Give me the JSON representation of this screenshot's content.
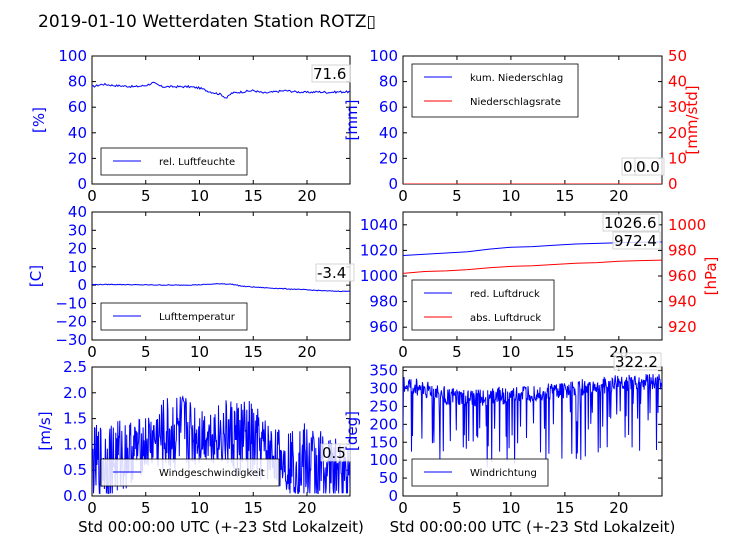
{
  "title": "2019-01-10 Wetterdaten Station ROTZ▯",
  "colors": {
    "primary": "#0000ff",
    "secondary": "#ff0000",
    "axis": "#000000"
  },
  "chart_data": [
    {
      "type": "line",
      "id": "humidity",
      "xlabel": "",
      "ylabel": "[%]",
      "xlim": [
        0,
        24
      ],
      "ylim": [
        0,
        100
      ],
      "xticks": [
        "0",
        "5",
        "10",
        "15",
        "20"
      ],
      "yticks": [
        "0",
        "20",
        "40",
        "60",
        "80",
        "100"
      ],
      "legend": {
        "placement": "lower-left"
      },
      "series": [
        {
          "name": "rel. Luftfeuchte",
          "color": "#0000ff",
          "x": [
            0,
            1,
            2,
            3,
            4,
            5,
            5.7,
            6.5,
            8,
            9,
            10,
            11,
            12,
            12.5,
            13,
            14,
            15,
            16,
            17,
            18,
            19,
            20,
            21,
            22,
            23,
            24
          ],
          "y": [
            76,
            78,
            77,
            76.5,
            76,
            77,
            79,
            76,
            76,
            76,
            75,
            72,
            70,
            67,
            71,
            72,
            73,
            71,
            72,
            73,
            72,
            71.5,
            72,
            71.6,
            72,
            72
          ]
        }
      ],
      "value_labels": [
        "71.6"
      ]
    },
    {
      "type": "line",
      "id": "precipitation",
      "xlabel": "",
      "ylabel": "[mm]",
      "ylabel2": "[mm/std]",
      "xlim": [
        0,
        24
      ],
      "ylim": [
        0,
        100
      ],
      "ylim2": [
        0,
        50
      ],
      "xticks": [
        "0",
        "5",
        "10",
        "15",
        "20"
      ],
      "yticks": [
        "0",
        "20",
        "40",
        "60",
        "80",
        "100"
      ],
      "yticks2": [
        "0",
        "10",
        "20",
        "30",
        "40",
        "50"
      ],
      "legend": {
        "placement": "top-left"
      },
      "series": [
        {
          "name": "kum. Niederschlag",
          "color": "#0000ff",
          "x": [
            0,
            24
          ],
          "y": [
            0,
            0
          ]
        },
        {
          "name": "Niederschlagsrate",
          "color": "#ff0000",
          "x": [
            0,
            24
          ],
          "y": [
            0,
            0
          ],
          "axis": "right"
        }
      ],
      "value_labels": [
        "0.0",
        "0.0"
      ]
    },
    {
      "type": "line",
      "id": "temperature",
      "xlabel": "",
      "ylabel": "[C]",
      "xlim": [
        0,
        24
      ],
      "ylim": [
        -30,
        40
      ],
      "xticks": [
        "0",
        "5",
        "10",
        "15",
        "20"
      ],
      "yticks": [
        "−30",
        "−20",
        "−10",
        "0",
        "10",
        "20",
        "30",
        "40"
      ],
      "legend": {
        "placement": "lower-left"
      },
      "series": [
        {
          "name": "Lufttemperatur",
          "color": "#0000ff",
          "x": [
            0,
            2,
            4,
            6,
            8,
            10,
            12,
            13,
            14,
            16,
            18,
            20,
            22,
            24
          ],
          "y": [
            0.3,
            0.4,
            0.2,
            0.1,
            0.0,
            0.2,
            0.8,
            0.5,
            -0.6,
            -1.4,
            -2.0,
            -2.6,
            -3.2,
            -3.4
          ]
        }
      ],
      "value_labels": [
        "-3.4"
      ]
    },
    {
      "type": "line",
      "id": "pressure",
      "xlabel": "",
      "ylabel": "",
      "ylabel2": "[hPa]",
      "xlim": [
        0,
        24
      ],
      "ylim": [
        950,
        1050
      ],
      "ylim2": [
        910,
        1010
      ],
      "xticks": [
        "0",
        "5",
        "10",
        "15",
        "20"
      ],
      "yticks": [
        "960",
        "980",
        "1000",
        "1020",
        "1040"
      ],
      "yticks2": [
        "920",
        "940",
        "960",
        "980",
        "1000"
      ],
      "legend": {
        "placement": "lower-left"
      },
      "series": [
        {
          "name": "red. Luftdruck",
          "color": "#0000ff",
          "x": [
            0,
            2,
            4,
            6,
            8,
            10,
            12,
            14,
            16,
            18,
            20,
            22,
            24
          ],
          "y": [
            1016,
            1017,
            1018,
            1019,
            1021,
            1022.5,
            1023,
            1024,
            1025,
            1025.5,
            1026,
            1026.4,
            1026.6
          ]
        },
        {
          "name": "abs. Luftdruck",
          "color": "#ff0000",
          "axis": "right",
          "x": [
            0,
            2,
            4,
            6,
            8,
            10,
            12,
            14,
            16,
            18,
            20,
            22,
            24
          ],
          "y": [
            962,
            963.5,
            964,
            965,
            966.5,
            967.5,
            968,
            969,
            970,
            970.5,
            971.5,
            972,
            972.4
          ]
        }
      ],
      "value_labels": [
        "1026.6",
        "972.4"
      ]
    },
    {
      "type": "line",
      "id": "wind-speed",
      "xlabel": "Std 00:00:00 UTC (+-23 Std Lokalzeit)",
      "ylabel": "[m/s]",
      "xlim": [
        0,
        24
      ],
      "ylim": [
        0,
        2.5
      ],
      "xticks": [
        "0",
        "5",
        "10",
        "15",
        "20"
      ],
      "yticks": [
        "0.0",
        "0.5",
        "1.0",
        "1.5",
        "2.0",
        "2.5"
      ],
      "legend": {
        "placement": "lower-left"
      },
      "series": [
        {
          "name": "Windgeschwindigkeit",
          "color": "#0000ff",
          "x": [
            0,
            2,
            4,
            6,
            8,
            10,
            12,
            14,
            16,
            18,
            20,
            22,
            24
          ],
          "y": [
            0.6,
            0.7,
            0.9,
            1.1,
            1.2,
            1.2,
            1.2,
            1.1,
            0.9,
            0.7,
            0.6,
            0.5,
            0.5
          ]
        }
      ],
      "value_labels": [
        "0.5"
      ]
    },
    {
      "type": "line",
      "id": "wind-direction",
      "xlabel": "Std 00:00:00 UTC (+-23 Std Lokalzeit)",
      "ylabel": "[deg]",
      "xlim": [
        0,
        24
      ],
      "ylim": [
        0,
        360
      ],
      "xticks": [
        "0",
        "5",
        "10",
        "15",
        "20"
      ],
      "yticks": [
        "0",
        "50",
        "100",
        "150",
        "200",
        "250",
        "300",
        "350"
      ],
      "legend": {
        "placement": "lower-left"
      },
      "series": [
        {
          "name": "Windrichtung",
          "color": "#0000ff",
          "x": [
            0,
            2,
            4,
            6,
            8,
            10,
            12,
            14,
            16,
            18,
            20,
            22,
            24
          ],
          "y": [
            310,
            300,
            280,
            270,
            280,
            280,
            290,
            295,
            300,
            305,
            315,
            320,
            322
          ]
        }
      ],
      "value_labels": [
        "322.2"
      ]
    }
  ]
}
